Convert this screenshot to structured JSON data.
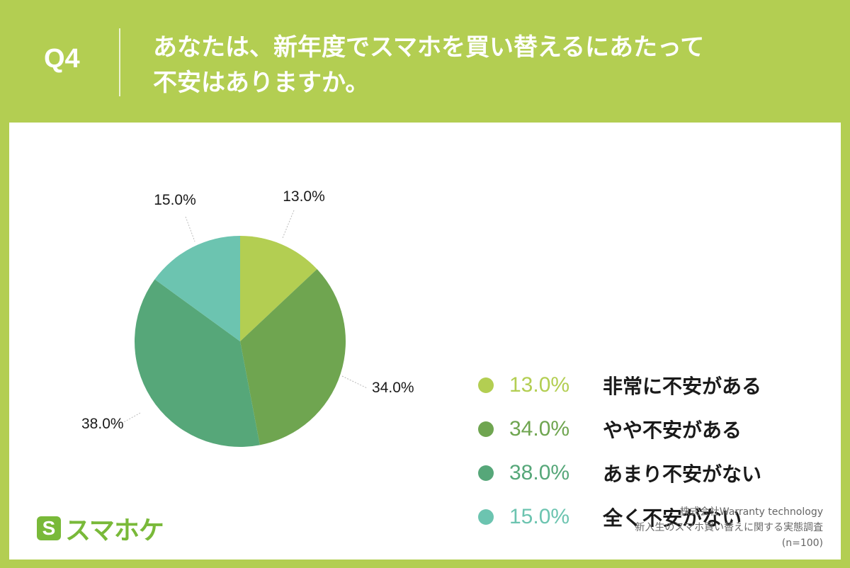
{
  "header": {
    "q_label": "Q4",
    "title_line1": "あなたは、新年度でスマホを買い替えるにあたって",
    "title_line2": "不安はありますか。"
  },
  "chart_data": {
    "type": "pie",
    "title": "",
    "unit": "%",
    "slices": [
      {
        "label": "非常に不安がある",
        "value": 13.0,
        "display": "13.0%",
        "color": "#B3CE52"
      },
      {
        "label": "やや不安がある",
        "value": 34.0,
        "display": "34.0%",
        "color": "#6FA550"
      },
      {
        "label": "あまり不安がない",
        "value": 38.0,
        "display": "38.0%",
        "color": "#56A779"
      },
      {
        "label": "全く不安がない",
        "value": 15.0,
        "display": "15.0%",
        "color": "#6CC4B0"
      }
    ],
    "legend_position": "right"
  },
  "legend": {
    "items": [
      {
        "pct": "13.0%",
        "label": "非常に不安がある"
      },
      {
        "pct": "34.0%",
        "label": "やや不安がある"
      },
      {
        "pct": "38.0%",
        "label": "あまり不安がない"
      },
      {
        "pct": "15.0%",
        "label": "全く不安がない"
      }
    ]
  },
  "logo": {
    "mark": "S",
    "text": "スマホケ"
  },
  "source": {
    "company": "株式会社Warranty technology",
    "survey": "新入生のスマホ買い替えに関する実態調査",
    "sample": "(n=100)"
  },
  "colors": {
    "background": "#B3CE52",
    "logo_green": "#79B939"
  }
}
